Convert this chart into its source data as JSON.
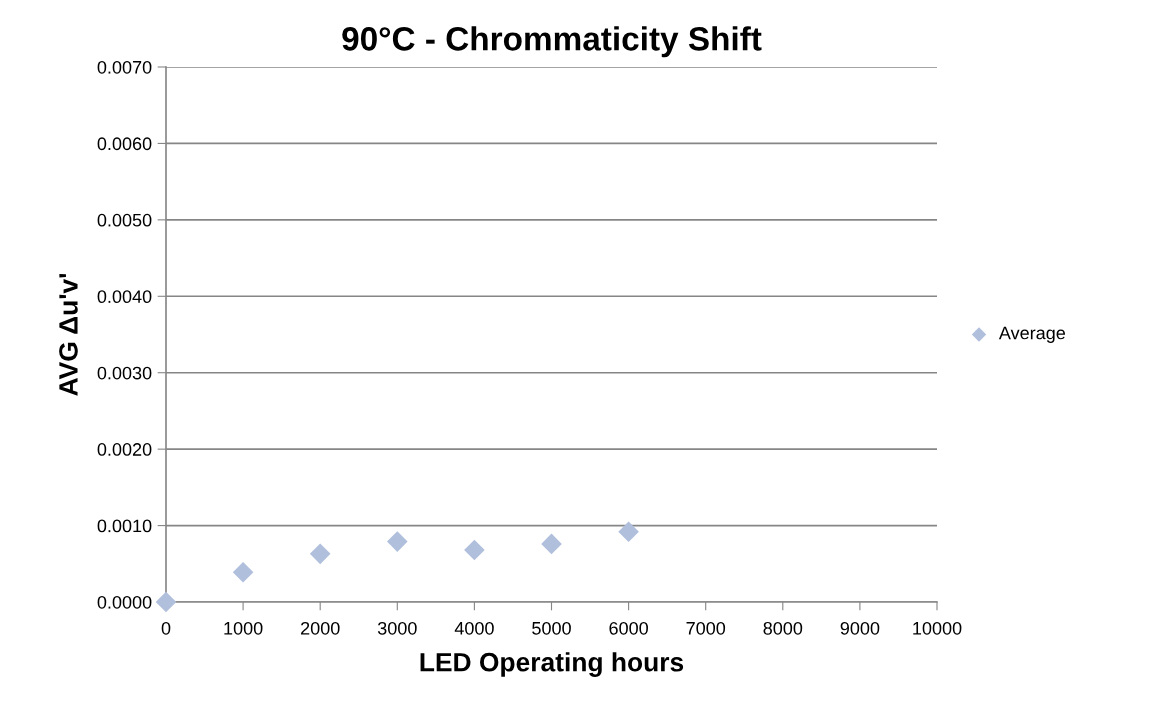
{
  "chart_data": {
    "type": "scatter",
    "title": "90°C - Chrommaticity Shift",
    "xlabel": "LED Operating hours",
    "ylabel": "AVG Δu'v'",
    "x": [
      0,
      1000,
      2000,
      3000,
      4000,
      5000,
      6000
    ],
    "series": [
      {
        "name": "Average",
        "color": "#b0bfdc",
        "values": [
          0.0,
          0.00039,
          0.00063,
          0.00079,
          0.00068,
          0.00076,
          0.00092
        ]
      }
    ],
    "xlim": [
      0,
      10000
    ],
    "xticks": [
      0,
      1000,
      2000,
      3000,
      4000,
      5000,
      6000,
      7000,
      8000,
      9000,
      10000
    ],
    "ylim": [
      0,
      0.007
    ],
    "yticks": [
      {
        "value": 0,
        "label": "0.0000"
      },
      {
        "value": 0.001,
        "label": "0.0010"
      },
      {
        "value": 0.002,
        "label": "0.0020"
      },
      {
        "value": 0.003,
        "label": "0.0030"
      },
      {
        "value": 0.004,
        "label": "0.0040"
      },
      {
        "value": 0.005,
        "label": "0.0050"
      },
      {
        "value": 0.006,
        "label": "0.0060"
      },
      {
        "value": 0.007,
        "label": "0.0070"
      }
    ],
    "grid": "y",
    "legend": "right",
    "marker": "diamond"
  }
}
